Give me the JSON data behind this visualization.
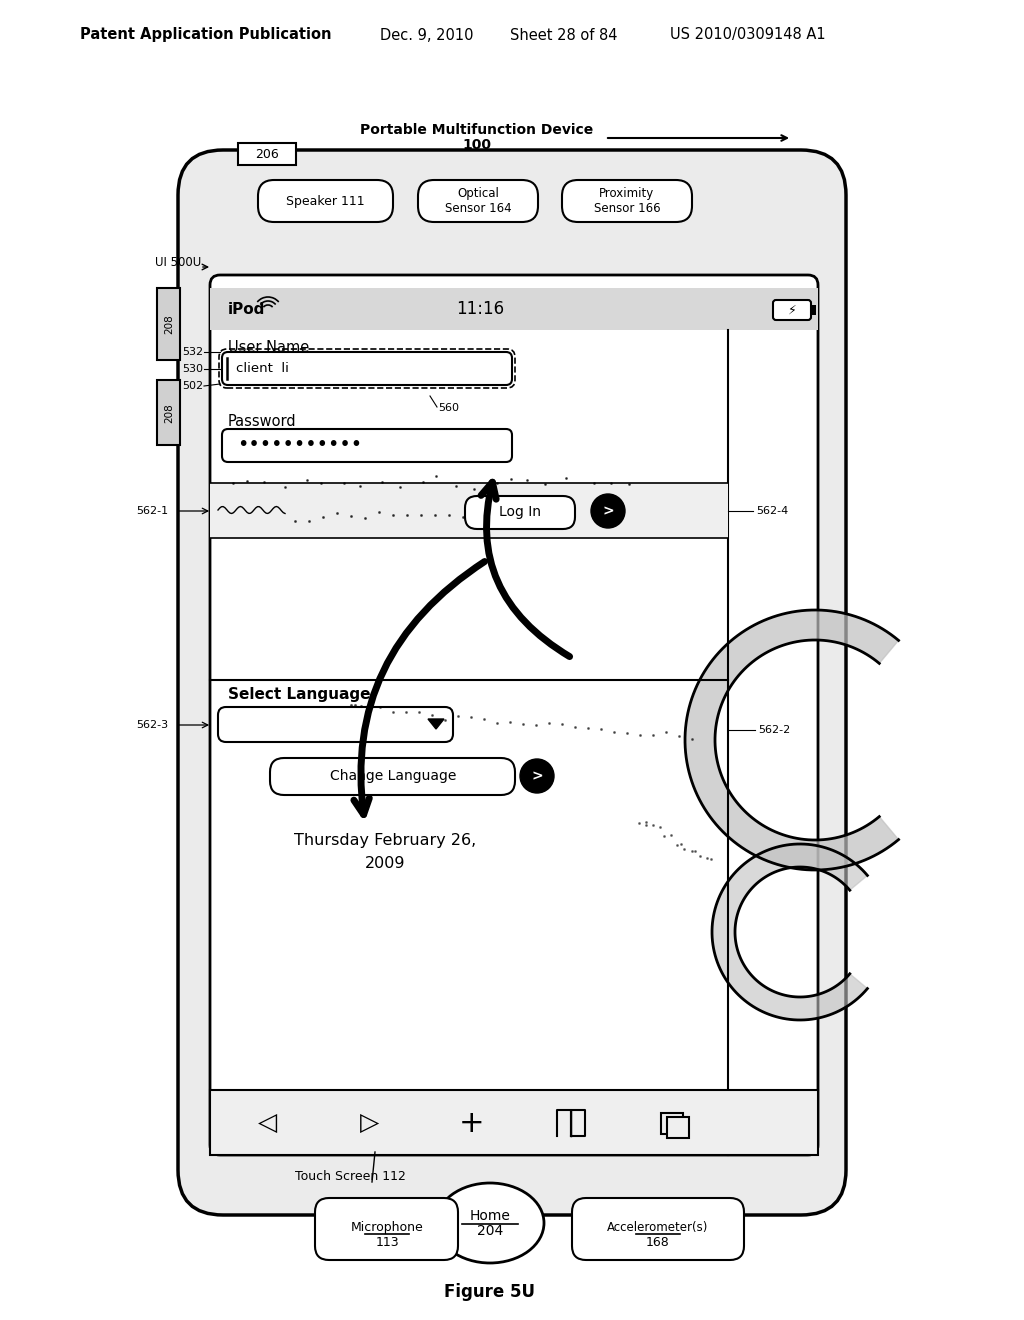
{
  "header_left": "Patent Application Publication",
  "header_mid1": "Dec. 9, 2010",
  "header_mid2": "Sheet 28 of 84",
  "header_right": "US 2010/0309148 A1",
  "fig_label": "Figure 5U",
  "portable_device_label": "Portable Multifunction Device",
  "portable_device_num": "100",
  "frame_num": "206",
  "ui_label": "UI 500U",
  "speaker_label": "Speaker 111",
  "optical_label": "Optical\nSensor 164",
  "proximity_label": "Proximity\nSensor 166",
  "status_time": "11:16",
  "status_app": "iPod",
  "label_532": "532",
  "label_530": "530",
  "label_502": "502",
  "label_560": "560",
  "label_5621": "562-1",
  "label_5622": "562-2",
  "label_5623": "562-3",
  "label_5624": "562-4",
  "username_label": "User Name",
  "username_value": "client  li",
  "password_label": "Password",
  "login_text": "Log In",
  "select_lang_text": "Select Language",
  "change_lang_text": "Change Language",
  "date_text": "Thursday February 26,\n2009",
  "touch_screen": "Touch Screen 112",
  "home_text": "Home\n204",
  "microphone_text": "Microphone\n113",
  "accelerometer_text": "Accelerometer(s)\n168",
  "bg": "#ffffff"
}
